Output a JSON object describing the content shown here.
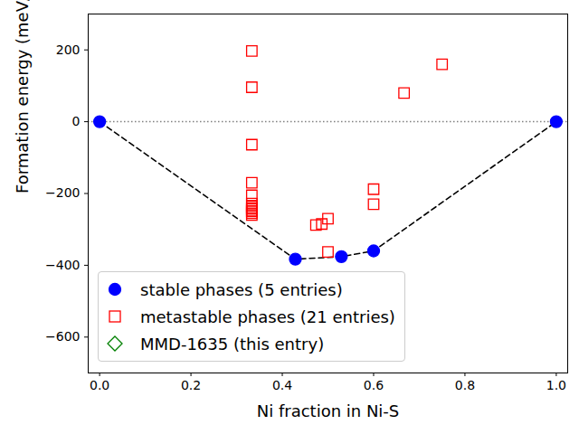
{
  "chart_data": {
    "type": "scatter",
    "xlabel": "Ni fraction in Ni-S",
    "ylabel": "Formation energy (meV/atom)",
    "xlim": [
      -0.025,
      1.025
    ],
    "ylim": [
      -700,
      300
    ],
    "xticks": [
      {
        "value": 0,
        "label": "0.0"
      },
      {
        "value": 0.2,
        "label": "0.2"
      },
      {
        "value": 0.4,
        "label": "0.4"
      },
      {
        "value": 0.6,
        "label": "0.6"
      },
      {
        "value": 0.8,
        "label": "0.8"
      },
      {
        "value": 1,
        "label": "1.0"
      }
    ],
    "yticks": [
      {
        "value": -600,
        "label": "−600"
      },
      {
        "value": -400,
        "label": "−400"
      },
      {
        "value": -200,
        "label": "−200"
      },
      {
        "value": 0,
        "label": "0"
      },
      {
        "value": 200,
        "label": "200"
      }
    ],
    "hlines": [
      0
    ],
    "legend": "lower left",
    "series": [
      {
        "name": "stable phases (5 entries)",
        "color": "#0000ff",
        "marker": "circle",
        "line_style": "dashed",
        "x": [
          0,
          0.4286,
          0.5294,
          0.6,
          1
        ],
        "values": [
          0,
          -383,
          -376,
          -360,
          0
        ]
      },
      {
        "name": "metastable phases (21 entries)",
        "color": "#ff0000",
        "marker": "square",
        "x": [
          0.3333,
          0.3333,
          0.3333,
          0.3333,
          0.3333,
          0.3333,
          0.3333,
          0.3333,
          0.3333,
          0.3333,
          0.3333,
          0.3333,
          0.3333,
          0.4737,
          0.4865,
          0.5,
          0.5,
          0.6,
          0.6,
          0.6667,
          0.75
        ],
        "values": [
          197,
          96,
          -64,
          -170,
          -205,
          -228,
          -235,
          -240,
          -243,
          -248,
          -250,
          -255,
          -260,
          -288,
          -285,
          -270,
          -363,
          -188,
          -230,
          80,
          160
        ]
      },
      {
        "name": "MMD-1635 (this entry)",
        "color": "#008000",
        "marker": "diamond",
        "x": [],
        "values": []
      }
    ]
  }
}
